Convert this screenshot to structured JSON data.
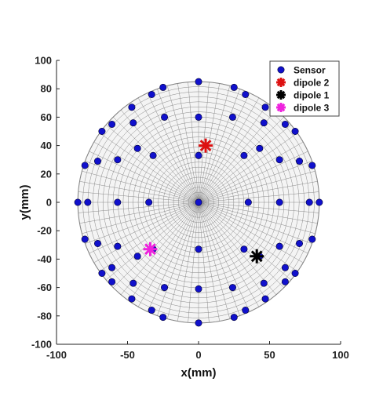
{
  "chart_data": {
    "type": "scatter",
    "title": "",
    "xlabel": "x(mm)",
    "ylabel": "y(mm)",
    "xlim": [
      -100,
      100
    ],
    "ylim": [
      -100,
      100
    ],
    "xticks": [
      -100,
      -50,
      0,
      50,
      100
    ],
    "yticks": [
      -100,
      -80,
      -60,
      -40,
      -20,
      0,
      20,
      40,
      60,
      80,
      100
    ],
    "grid": false,
    "background": "polar mesh disk, radius 85 mm",
    "legend_position": "top-right",
    "series": [
      {
        "name": "Sensor",
        "marker": "filled-circle",
        "color": "#1010cc",
        "points": [
          [
            0,
            85
          ],
          [
            -25,
            81
          ],
          [
            25,
            81
          ],
          [
            -33,
            76
          ],
          [
            33,
            76
          ],
          [
            -47,
            67
          ],
          [
            47,
            67
          ],
          [
            -24,
            60
          ],
          [
            24,
            60
          ],
          [
            0,
            60
          ],
          [
            -68,
            50
          ],
          [
            68,
            50
          ],
          [
            -61,
            55
          ],
          [
            61,
            55
          ],
          [
            -46,
            56
          ],
          [
            46,
            56
          ],
          [
            -43,
            38
          ],
          [
            43,
            38
          ],
          [
            -57,
            30
          ],
          [
            57,
            30
          ],
          [
            -71,
            29
          ],
          [
            71,
            29
          ],
          [
            -80,
            26
          ],
          [
            80,
            26
          ],
          [
            0,
            33
          ],
          [
            -32,
            33
          ],
          [
            32,
            33
          ],
          [
            -85,
            0
          ],
          [
            85,
            0
          ],
          [
            -78,
            0
          ],
          [
            78,
            0
          ],
          [
            -57,
            0
          ],
          [
            57,
            0
          ],
          [
            -35,
            0
          ],
          [
            35,
            0
          ],
          [
            0,
            0
          ],
          [
            -80,
            -26
          ],
          [
            80,
            -26
          ],
          [
            -71,
            -29
          ],
          [
            71,
            -29
          ],
          [
            -57,
            -31
          ],
          [
            57,
            -31
          ],
          [
            -32,
            -33
          ],
          [
            32,
            -33
          ],
          [
            0,
            -33
          ],
          [
            -43,
            -38
          ],
          [
            43,
            -38
          ],
          [
            -61,
            -46
          ],
          [
            61,
            -46
          ],
          [
            -68,
            -50
          ],
          [
            68,
            -50
          ],
          [
            -61,
            -56
          ],
          [
            61,
            -56
          ],
          [
            -46,
            -57
          ],
          [
            46,
            -57
          ],
          [
            -24,
            -60
          ],
          [
            24,
            -60
          ],
          [
            0,
            -61
          ],
          [
            -47,
            -68
          ],
          [
            47,
            -68
          ],
          [
            -33,
            -76
          ],
          [
            33,
            -76
          ],
          [
            -25,
            -81
          ],
          [
            25,
            -81
          ],
          [
            0,
            -85
          ]
        ]
      },
      {
        "name": "dipole 2",
        "marker": "asterisk",
        "color": "#dd1111",
        "points": [
          [
            5,
            40
          ]
        ]
      },
      {
        "name": "dipole 1",
        "marker": "asterisk",
        "color": "#000000",
        "points": [
          [
            41,
            -38
          ]
        ]
      },
      {
        "name": "dipole 3",
        "marker": "asterisk",
        "color": "#ee22dd",
        "points": [
          [
            -34,
            -33
          ]
        ]
      }
    ]
  }
}
